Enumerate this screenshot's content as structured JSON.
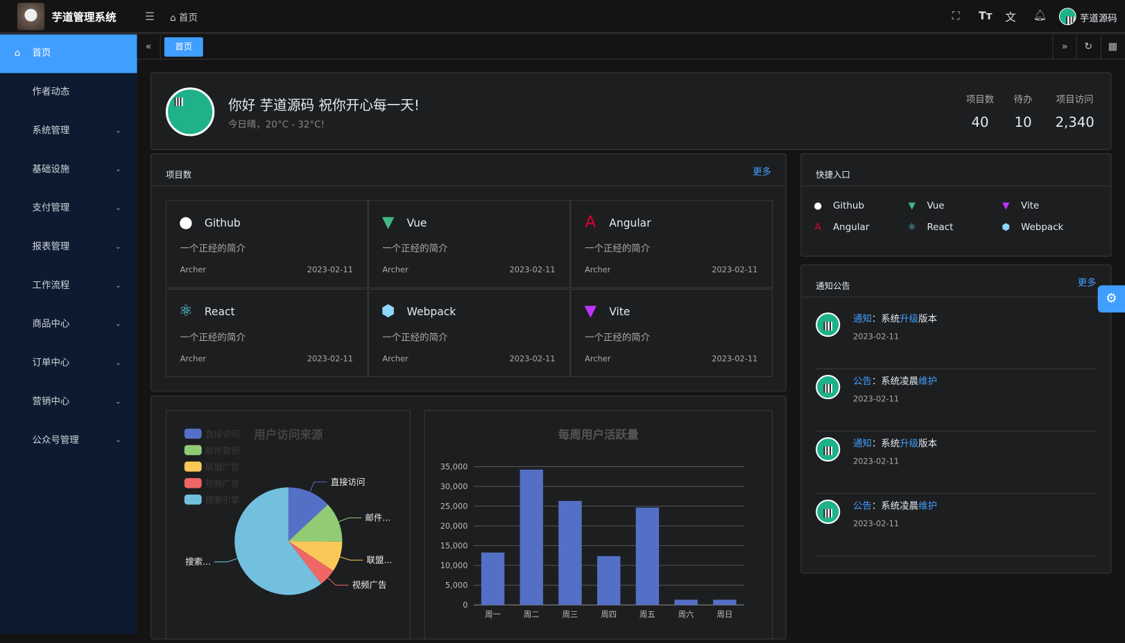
{
  "header": {
    "app_title": "芋道管理系统",
    "breadcrumb": "首页",
    "user_name": "芋道源码",
    "icons": [
      "menu-fold-icon",
      "home-icon",
      "fullscreen-icon",
      "font-size-icon",
      "translate-icon",
      "bell-icon"
    ]
  },
  "sidebar": {
    "items": [
      {
        "label": "首页",
        "active": true
      },
      {
        "label": "作者动态"
      },
      {
        "label": "系统管理",
        "expandable": true
      },
      {
        "label": "基础设施",
        "expandable": true
      },
      {
        "label": "支付管理",
        "expandable": true
      },
      {
        "label": "报表管理",
        "expandable": true
      },
      {
        "label": "工作流程",
        "expandable": true
      },
      {
        "label": "商品中心",
        "expandable": true
      },
      {
        "label": "订单中心",
        "expandable": true
      },
      {
        "label": "营销中心",
        "expandable": true
      },
      {
        "label": "公众号管理",
        "expandable": true
      }
    ]
  },
  "tabs": [
    {
      "label": "首页",
      "active": true
    }
  ],
  "welcome": {
    "greeting": "你好 芋道源码 祝你开心每一天!",
    "weather": "今日晴，20°C - 32°C!",
    "stats": [
      {
        "label": "项目数",
        "value": "40"
      },
      {
        "label": "待办",
        "value": "10"
      },
      {
        "label": "项目访问",
        "value": "2,340"
      }
    ]
  },
  "projects": {
    "title": "项目数",
    "more": "更多",
    "items": [
      {
        "name": "Github",
        "desc": "一个正经的简介",
        "author": "Archer",
        "date": "2023-02-11",
        "icon": "github-icon",
        "color": "#ffffff"
      },
      {
        "name": "Vue",
        "desc": "一个正经的简介",
        "author": "Archer",
        "date": "2023-02-11",
        "icon": "vue-icon",
        "color": "#42b883"
      },
      {
        "name": "Angular",
        "desc": "一个正经的简介",
        "author": "Archer",
        "date": "2023-02-11",
        "icon": "angular-icon",
        "color": "#dd0031"
      },
      {
        "name": "React",
        "desc": "一个正经的简介",
        "author": "Archer",
        "date": "2023-02-11",
        "icon": "react-icon",
        "color": "#61dafb"
      },
      {
        "name": "Webpack",
        "desc": "一个正经的简介",
        "author": "Archer",
        "date": "2023-02-11",
        "icon": "webpack-icon",
        "color": "#8ed6fb"
      },
      {
        "name": "Vite",
        "desc": "一个正经的简介",
        "author": "Archer",
        "date": "2023-02-11",
        "icon": "vite-icon",
        "color": "#bd34fe"
      }
    ]
  },
  "shortcuts": {
    "title": "快捷入口",
    "items": [
      {
        "name": "Github",
        "icon": "github-icon"
      },
      {
        "name": "Vue",
        "icon": "vue-icon"
      },
      {
        "name": "Vite",
        "icon": "vite-icon"
      },
      {
        "name": "Angular",
        "icon": "angular-icon"
      },
      {
        "name": "React",
        "icon": "react-icon"
      },
      {
        "name": "Webpack",
        "icon": "webpack-icon"
      }
    ]
  },
  "notices": {
    "title": "通知公告",
    "more": "更多",
    "items": [
      {
        "type": "通知",
        "pre": "：系统",
        "hl": "升级",
        "post": "版本",
        "date": "2023-02-11"
      },
      {
        "type": "公告",
        "pre": "：系统凌晨",
        "hl": "维护",
        "post": "",
        "date": "2023-02-11"
      },
      {
        "type": "通知",
        "pre": "：系统",
        "hl": "升级",
        "post": "版本",
        "date": "2023-02-11"
      },
      {
        "type": "公告",
        "pre": "：系统凌晨",
        "hl": "维护",
        "post": "",
        "date": "2023-02-11"
      }
    ]
  },
  "chart_data": [
    {
      "type": "pie",
      "title": "用户访问来源",
      "legend_position": "top-left",
      "categories": [
        "直接访问",
        "邮件营销",
        "联盟广告",
        "视频广告",
        "搜索引擎"
      ],
      "values": [
        335,
        310,
        234,
        135,
        1548
      ],
      "slice_labels": [
        "直接访问",
        "邮件...",
        "联盟...",
        "视频广告",
        "搜索..."
      ],
      "colors": [
        "#5470c6",
        "#91cc75",
        "#fac858",
        "#ee6666",
        "#73c0de"
      ]
    },
    {
      "type": "bar",
      "title": "每周用户活跃量",
      "categories": [
        "周一",
        "周二",
        "周三",
        "周四",
        "周五",
        "周六",
        "周日"
      ],
      "values": [
        13253,
        34235,
        26321,
        12340,
        24643,
        1322,
        1324
      ],
      "ylim": [
        0,
        35000
      ],
      "yticks": [
        "0",
        "5,000",
        "10,000",
        "15,000",
        "20,000",
        "25,000",
        "30,000",
        "35,000"
      ],
      "grid": true,
      "color": "#5470c6"
    }
  ]
}
